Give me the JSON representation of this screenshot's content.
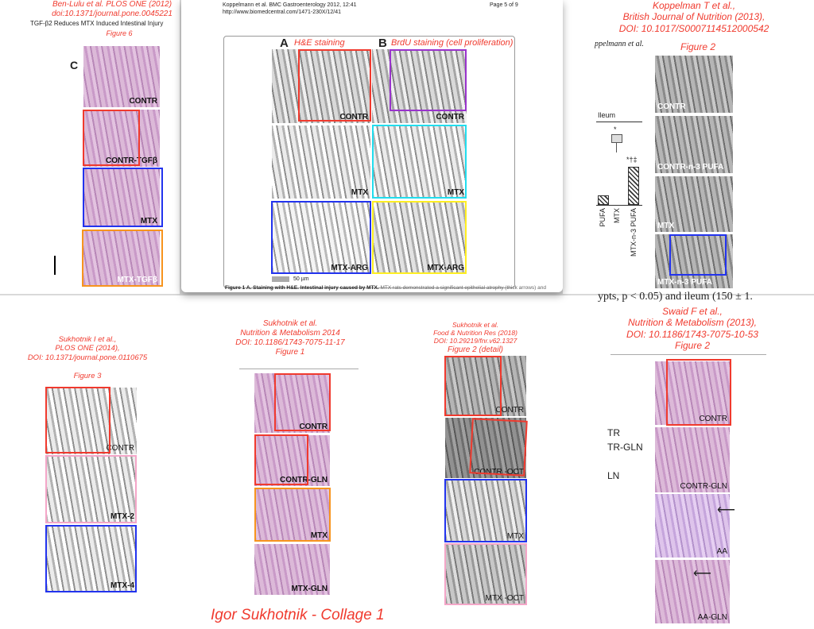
{
  "p1": {
    "ref": [
      "Ben-Lulu et al. PLOS ONE (2012)",
      "doi:10.1371/journal.pone.0045221"
    ],
    "title": "TGF-β2 Reduces MTX Induced Intestinal Injury",
    "figure": "Figure 6",
    "panel_letter": "C",
    "tiles": [
      "CONTR",
      "CONTR-TGFβ",
      "MTX",
      "MTX-TGFβ"
    ]
  },
  "p2": {
    "header1": "Koppelmann et al. BMC Gastroenterology 2012, 12:41",
    "header2": "http://www.biomedcentral.com/1471-230X/12/41",
    "page": "Page 5 of 9",
    "a": "A",
    "a_title": "H&E staining",
    "b": "B",
    "b_title": "BrdU staining (cell proliferation)",
    "rows": [
      "CONTR",
      "MTX",
      "MTX-ARG"
    ],
    "scale": "50 µm",
    "caption_bold": "Figure 1 A. Staining with H&E. Intestinal injury caused by MTX.",
    "caption": " MTX rats demonstrated a significant epithelial atrophy (thick arrows) and"
  },
  "p3": {
    "ref": [
      "Koppelman T et al.,",
      "British Journal of Nutrition (2013),",
      "DOI: 10.1017/S0007114512000542"
    ],
    "figure": "Figure 2",
    "author": "ppelmann et al.",
    "chart_title": "Ileum",
    "marks": [
      "*",
      "*†‡"
    ],
    "xlabels": [
      "PUFA",
      "MTX",
      "MTX-n-3 PUFA"
    ],
    "tiles": [
      "CONTR",
      "CONTR-n-3 PUFA",
      "MTX",
      "MTX-n-3 PUFA"
    ]
  },
  "p4": {
    "ref": [
      "Sukhotnik I et al.,",
      "PLOS ONE (2014),",
      "DOI: 10.1371/journal.pone.0110675"
    ],
    "figure": "Figure 3",
    "tiles": [
      "CONTR",
      "MTX-2",
      "MTX-4"
    ]
  },
  "p5": {
    "ref": [
      "Sukhotnik et al.",
      "Nutrition & Metabolism 2014",
      "DOI: 10.1186/1743-7075-11-17",
      "Figure 1"
    ],
    "tiles": [
      "CONTR",
      "CONTR-GLN",
      "MTX",
      "MTX-GLN"
    ]
  },
  "p6": {
    "ref": [
      "Sukhotnik et al.",
      "Food & Nutrition Res (2018)",
      "DOI: 10.29219/fnr.v62.1327",
      "Figure 2 (detail)"
    ],
    "tiles": [
      "CONTR",
      "CONTR -OCT",
      "MTX",
      "MTX -OCT"
    ]
  },
  "p7": {
    "text": "ypts, p < 0.05) and ileum (150 ± 1.",
    "ref": [
      "Swaid F et al.,",
      "Nutrition & Metabolism (2013),",
      "DOI: 10.1186/1743-7075-10-53",
      "Figure 2"
    ],
    "side": [
      "TR",
      "TR-GLN",
      "LN"
    ],
    "tiles": [
      "CONTR",
      "CONTR-GLN",
      "AA",
      "AA-GLN"
    ]
  },
  "collage_title": "Igor Sukhotnik - Collage 1",
  "colors": {
    "red": "#f03a2e",
    "blue": "#2233ee",
    "orange": "#f7941d",
    "purple": "#9933cc",
    "cyan": "#22ddee",
    "yellow": "#ffee22",
    "pink": "#f4a6c8"
  }
}
